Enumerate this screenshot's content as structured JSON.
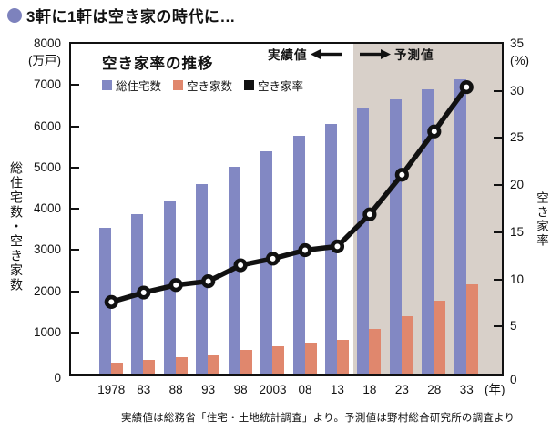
{
  "header": {
    "title": "3軒に1軒は空き家の時代に…",
    "bullet_color": "#7d82bd"
  },
  "chart_data": {
    "type": "bar+line",
    "title": "空き家率の推移",
    "categories": [
      "1978",
      "83",
      "88",
      "93",
      "98",
      "2003",
      "08",
      "13",
      "18",
      "23",
      "28",
      "33"
    ],
    "x_unit": "(年)",
    "series": [
      {
        "name": "総住宅数",
        "type": "bar",
        "axis": "left",
        "color": "#8288c3",
        "values": [
          3545,
          3861,
          4201,
          4588,
          5025,
          5389,
          5759,
          6063,
          6440,
          6660,
          6900,
          7130
        ]
      },
      {
        "name": "空き家数",
        "type": "bar",
        "axis": "left",
        "color": "#e0876d",
        "values": [
          268,
          330,
          394,
          448,
          576,
          659,
          757,
          820,
          1080,
          1400,
          1770,
          2170
        ]
      },
      {
        "name": "空き家率",
        "type": "line",
        "axis": "right",
        "color": "#111111",
        "values": [
          7.6,
          8.6,
          9.4,
          9.8,
          11.5,
          12.2,
          13.1,
          13.5,
          16.9,
          21.1,
          25.7,
          30.4
        ]
      }
    ],
    "left_axis": {
      "title": "総住宅数・空き家数",
      "unit": "(万戸)",
      "min": 0,
      "max": 8000,
      "step": 1000,
      "tick_labels": [
        "8000",
        "7000",
        "6000",
        "5000",
        "4000",
        "3000",
        "2000",
        "1000",
        "0"
      ]
    },
    "right_axis": {
      "title": "空き家率",
      "unit": "(%)",
      "min": 0,
      "max": 35,
      "step": 5,
      "tick_labels": [
        "35",
        "30",
        "25",
        "20",
        "15",
        "10",
        "5",
        "0"
      ]
    },
    "forecast": {
      "start_category": "18",
      "bg_color": "#d8d0c9",
      "actual_label": "実績値",
      "forecast_label": "予測値"
    },
    "grid": false,
    "legend_position": "top-left-inside"
  },
  "caption": "実績値は総務省「住宅・土地統計調査」より。予測値は野村総合研究所の調査より"
}
